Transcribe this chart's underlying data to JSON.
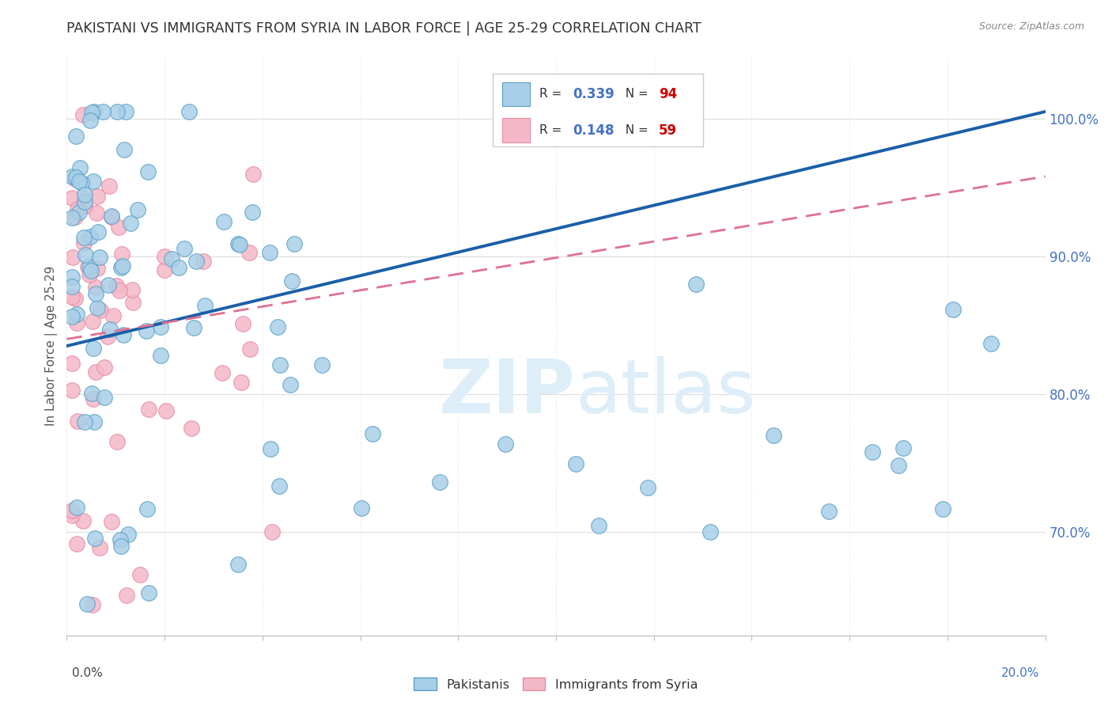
{
  "title": "PAKISTANI VS IMMIGRANTS FROM SYRIA IN LABOR FORCE | AGE 25-29 CORRELATION CHART",
  "source": "Source: ZipAtlas.com",
  "ylabel": "In Labor Force | Age 25-29",
  "ytick_labels": [
    "100.0%",
    "90.0%",
    "80.0%",
    "70.0%"
  ],
  "ytick_values": [
    1.0,
    0.9,
    0.8,
    0.7
  ],
  "r1": 0.339,
  "n1": 94,
  "r2": 0.148,
  "n2": 59,
  "color_blue": "#a8cfe8",
  "color_pink": "#f4b8c8",
  "color_blue_edge": "#5a9fc4",
  "color_pink_edge": "#e88aa0",
  "color_trend_blue": "#1a5fa8",
  "color_trend_pink": "#e07090",
  "watermark_color": "#ddeef8",
  "legend_label1": "Pakistanis",
  "legend_label2": "Immigrants from Syria",
  "xmin": 0.0,
  "xmax": 0.2,
  "ymin": 0.625,
  "ymax": 1.045
}
